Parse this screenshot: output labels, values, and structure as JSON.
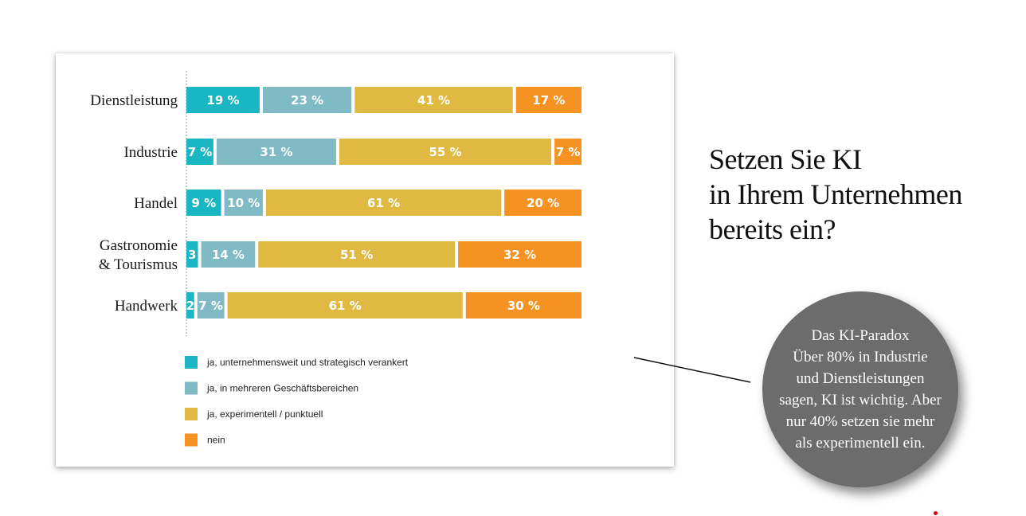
{
  "headline": {
    "lines": [
      "Setzen Sie KI",
      "in Ihrem Unternehmen",
      "bereits ein?"
    ]
  },
  "callout": {
    "lines": [
      "Das KI-Paradox",
      "Über 80% in Industrie",
      "und Dienstleistungen",
      "sagen, KI ist wichtig. Aber",
      "nur 40% setzen sie mehr",
      "als experimentell ein."
    ]
  },
  "chart_data": {
    "type": "bar",
    "orientation": "horizontal",
    "stacked": true,
    "percent_stacked": true,
    "grid": false,
    "legend_placement": "bottom-left",
    "categories": [
      [
        "Dienstleistung"
      ],
      [
        "Industrie"
      ],
      [
        "Handel"
      ],
      [
        "Gastronomie",
        "& Tourismus"
      ],
      [
        "Handwerk"
      ]
    ],
    "series": [
      {
        "name": "ja, unternehmensweit und strategisch verankert",
        "color": "#1bb6c4",
        "values": [
          19,
          7,
          9,
          3,
          2
        ],
        "labels": [
          "19 %",
          "7 %",
          "9 %",
          "3",
          "2"
        ]
      },
      {
        "name": "ja, in mehreren Geschäftsbereichen",
        "color": "#7fbac5",
        "values": [
          23,
          31,
          10,
          14,
          7
        ],
        "labels": [
          "23 %",
          "31 %",
          "10 %",
          "14 %",
          "7 %"
        ]
      },
      {
        "name": "ja, experimentell / punktuell",
        "color": "#dfb942",
        "values": [
          41,
          55,
          61,
          51,
          61
        ],
        "labels": [
          "41 %",
          "55 %",
          "61 %",
          "51 %",
          "61 %"
        ]
      },
      {
        "name": "nein",
        "color": "#f59222",
        "values": [
          17,
          7,
          20,
          32,
          30
        ],
        "labels": [
          "17 %",
          "7 %",
          "20 %",
          "32 %",
          "30 %"
        ]
      }
    ]
  }
}
